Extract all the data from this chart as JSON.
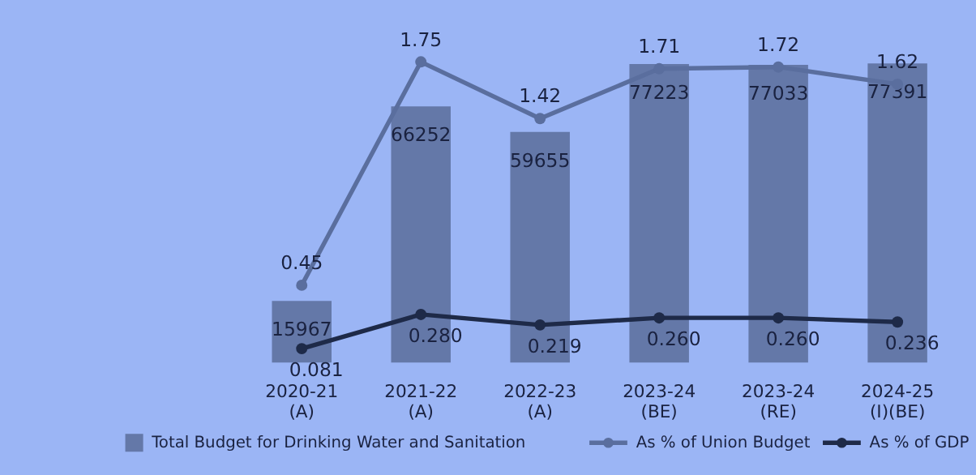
{
  "chart_data": {
    "type": "bar",
    "categories": [
      "2020-21\n(A)",
      "2021-22\n(A)",
      "2022-23\n(A)",
      "2023-24\n(BE)",
      "2023-24\n(RE)",
      "2024-25\n(I)(BE)"
    ],
    "series": [
      {
        "name": "Total Budget for Drinking Water and Sanitation",
        "color": "#6478a8",
        "values": [
          15967,
          66252,
          59655,
          77223,
          77033,
          77391
        ]
      },
      {
        "name": "As % of Union Budget",
        "type": "line",
        "axis": "y2",
        "color": "#5a6e9e",
        "values": [
          0.45,
          1.75,
          1.42,
          1.71,
          1.72,
          1.62
        ]
      },
      {
        "name": "As % of GDP",
        "type": "line",
        "axis": "y2",
        "color": "#1e2a48",
        "values": [
          0.081,
          0.28,
          0.219,
          0.26,
          0.26,
          0.236
        ],
        "value_labels": [
          "0.081",
          "0.280",
          "0.219",
          "0.260",
          "0.260",
          "0.236"
        ]
      }
    ],
    "data_labels": true,
    "marker": "circle",
    "legend": "bottom",
    "tick_labels": "x"
  }
}
